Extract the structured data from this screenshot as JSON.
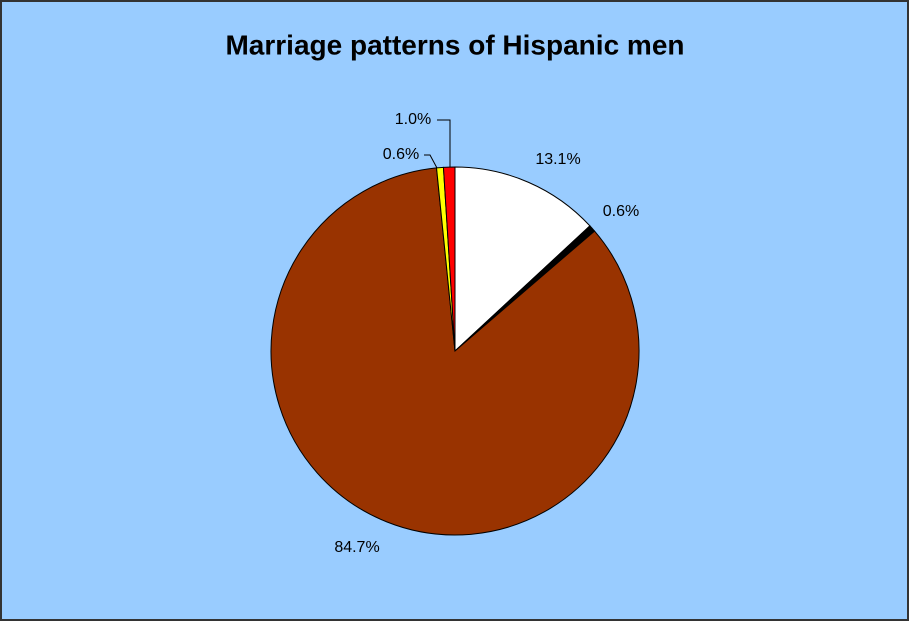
{
  "chart_data": {
    "type": "pie",
    "title": "Marriage patterns of Hispanic men",
    "values": [
      13.1,
      0.6,
      84.7,
      0.6,
      1.0
    ],
    "value_labels": [
      "13.1%",
      "0.6%",
      "84.7%",
      "0.6%",
      "1.0%"
    ],
    "colors": [
      "#ffffff",
      "#000000",
      "#993300",
      "#ffff00",
      "#ff0000"
    ],
    "background": "#99ccff"
  }
}
